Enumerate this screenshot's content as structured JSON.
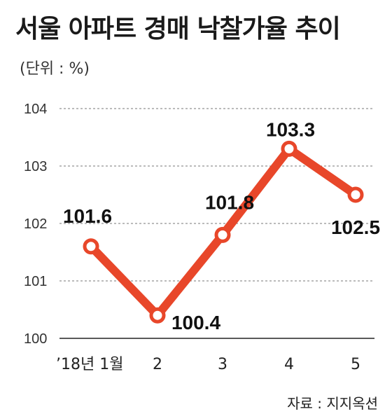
{
  "chart_data": {
    "type": "line",
    "title": "서울 아파트 경매 낙찰가율 추이",
    "unit_label": "(단위 : %)",
    "categories": [
      "’18년 1월",
      "2",
      "3",
      "4",
      "5"
    ],
    "series": [
      {
        "values": [
          101.6,
          100.4,
          101.8,
          103.3,
          102.5
        ]
      }
    ],
    "data_labels": [
      "101.6",
      "100.4",
      "101.8",
      "103.3",
      "102.5"
    ],
    "yticks": [
      "100",
      "101",
      "102",
      "103",
      "104"
    ],
    "ylim": [
      100,
      104
    ],
    "grid": "dashed horizontal",
    "line_color": "#e8472a",
    "source": "자료 : 지지옥션"
  }
}
